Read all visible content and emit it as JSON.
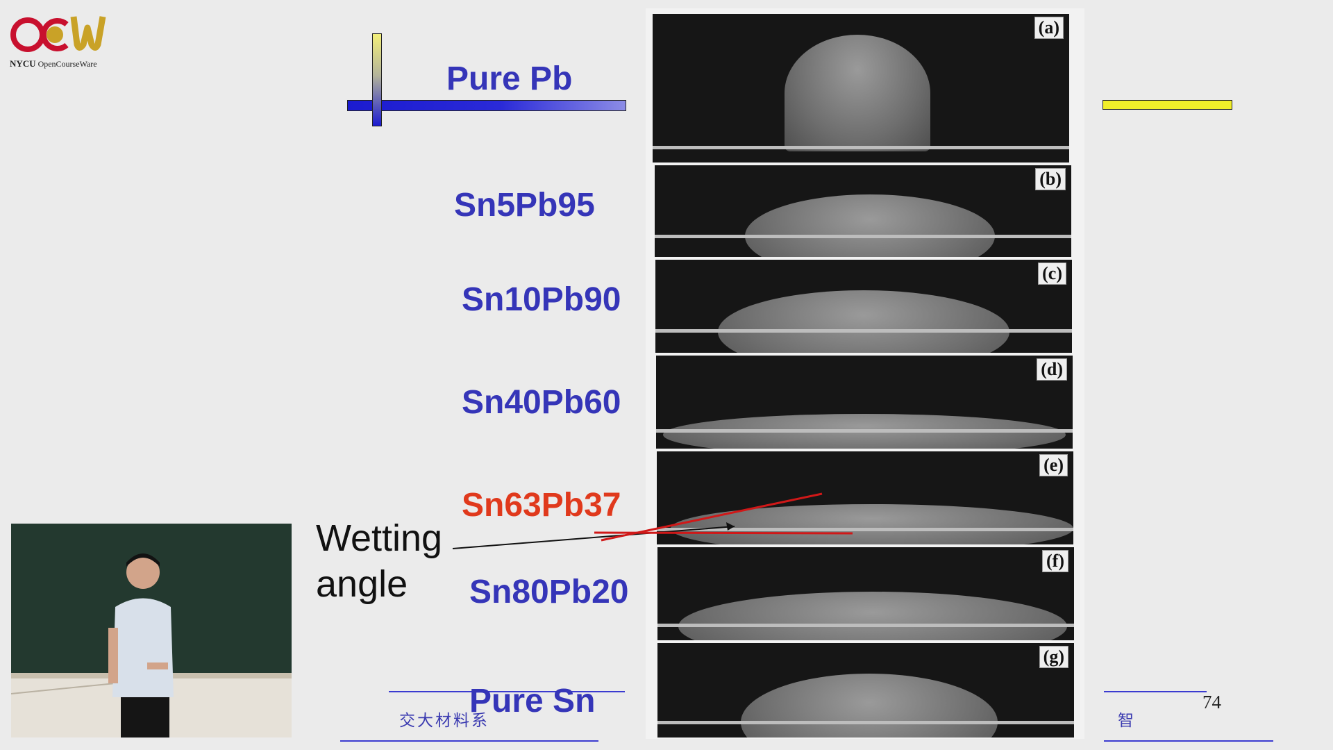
{
  "logo": {
    "wordmark": "OCW",
    "caption_bold": "NYCU",
    "caption_rest": "OpenCourseWare"
  },
  "slide": {
    "alloys": [
      {
        "id": "pure-pb",
        "label": "Pure Pb",
        "highlight": false
      },
      {
        "id": "sn5pb95",
        "label": "Sn5Pb95",
        "highlight": false
      },
      {
        "id": "sn10pb90",
        "label": "Sn10Pb90",
        "highlight": false
      },
      {
        "id": "sn40pb60",
        "label": "Sn40Pb60",
        "highlight": false
      },
      {
        "id": "sn63pb37",
        "label": "Sn63Pb37",
        "highlight": true
      },
      {
        "id": "sn80pb20",
        "label": "Sn80Pb20",
        "highlight": false
      },
      {
        "id": "pure-sn",
        "label": "Pure Sn",
        "highlight": false
      }
    ],
    "wetting_line1": "Wetting",
    "wetting_line2": "angle",
    "footer_left": "交大材料系",
    "footer_right": "智",
    "page_number": "74",
    "panel_tags": [
      "(a)",
      "(b)",
      "(c)",
      "(d)",
      "(e)",
      "(f)",
      "(g)"
    ]
  },
  "colors": {
    "alloy_text": "#3535b8",
    "highlight_text": "#e0391c",
    "accent_yellow": "#f1ee2a",
    "accent_blue": "#1b1bd0"
  }
}
